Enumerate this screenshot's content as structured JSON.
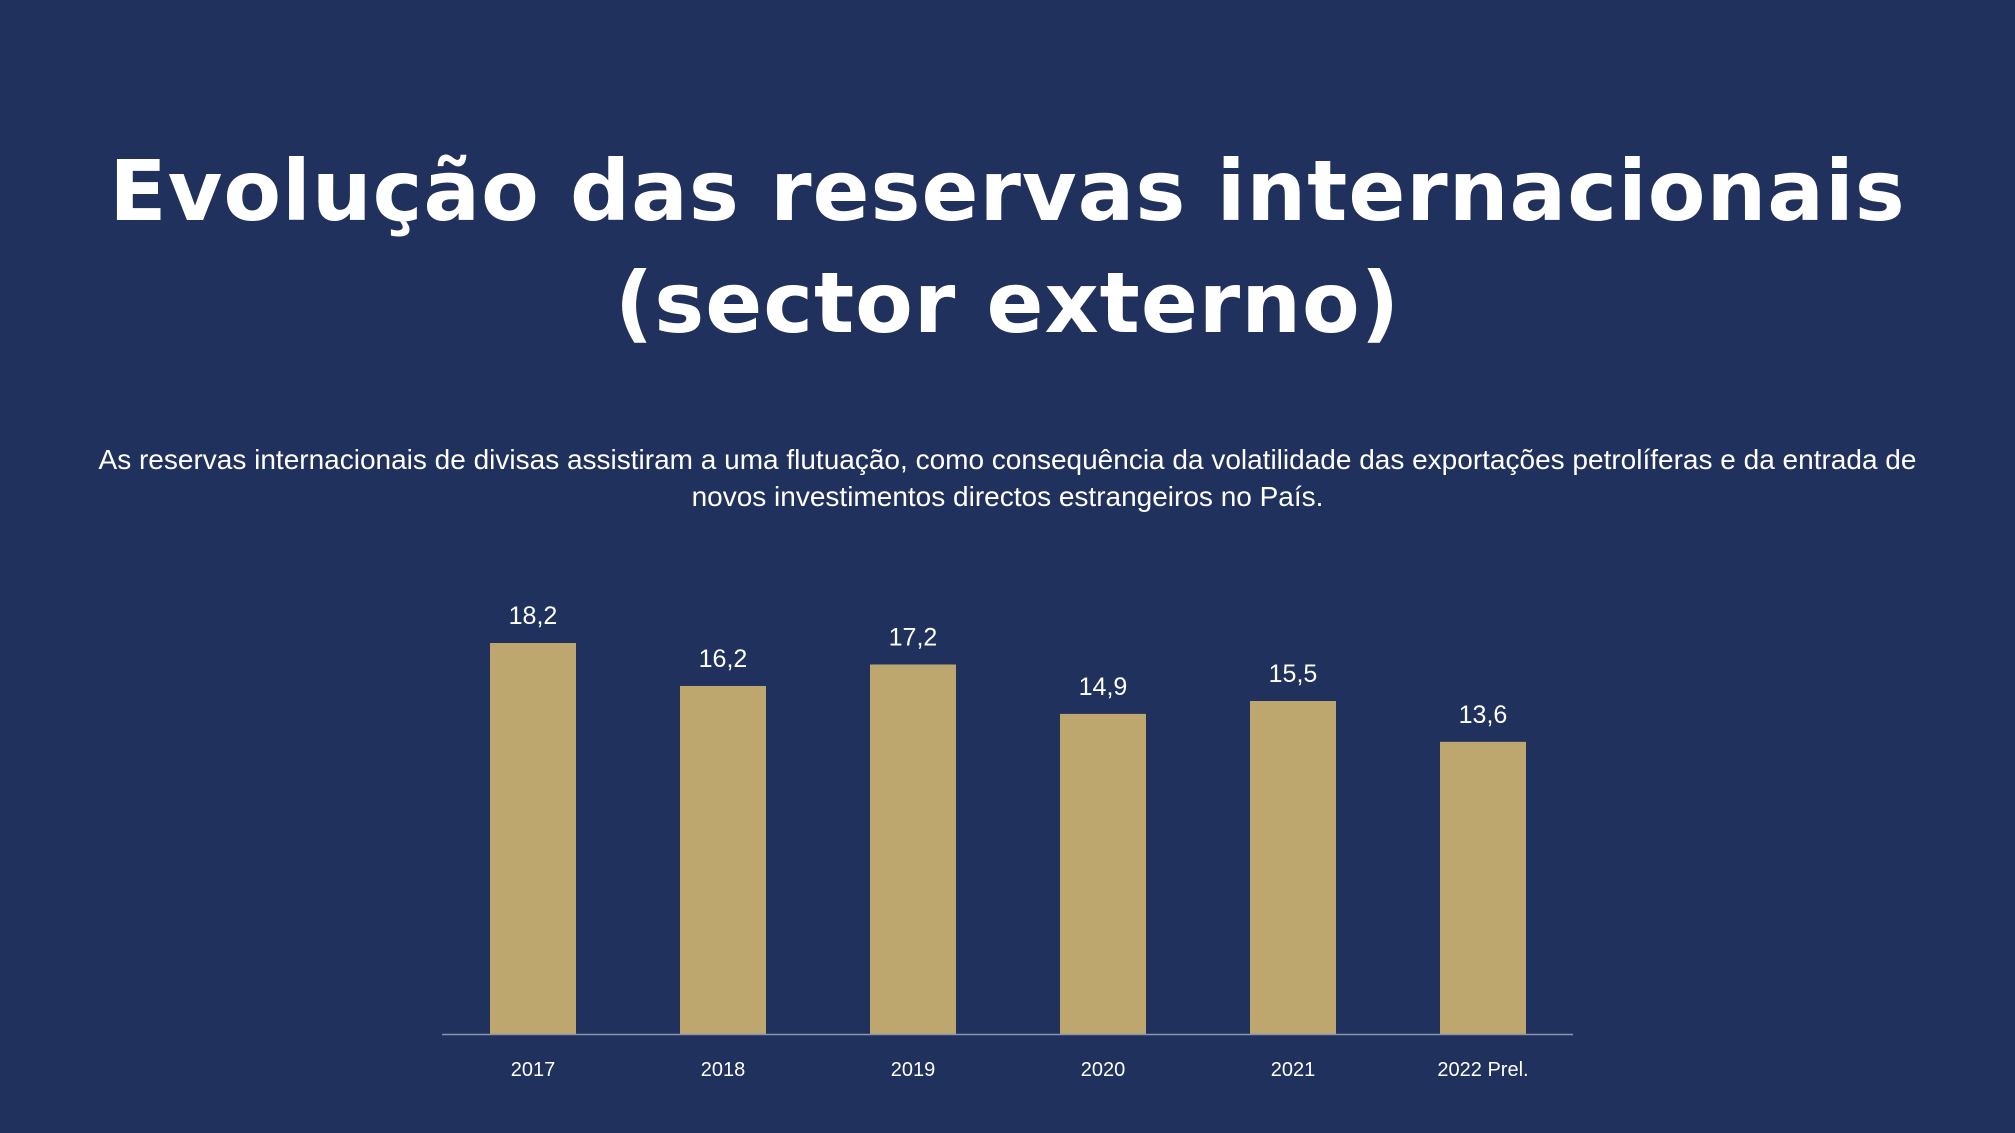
{
  "title": "Evolução das reservas internacionais\n(sector externo)",
  "subtitle": "As reservas internacionais de divisas assistiram a uma flutuação, como consequência da volatilidade das exportações petrolíferas e da entrada de novos investimentos directos estrangeiros no País.",
  "colors": {
    "background": "#1f315c",
    "bar": "#bda76f",
    "text": "#ffffff",
    "axis": "#8c94ad"
  },
  "chart_data": {
    "type": "bar",
    "title": "Evolução das reservas internacionais (sector externo)",
    "categories": [
      "2017",
      "2018",
      "2019",
      "2020",
      "2021",
      "2022 Prel."
    ],
    "values": [
      18.2,
      16.2,
      17.2,
      14.9,
      15.5,
      13.6
    ],
    "value_labels": [
      "18,2",
      "16,2",
      "17,2",
      "14,9",
      "15,5",
      "13,6"
    ],
    "xlabel": "",
    "ylabel": "",
    "ylim": [
      0,
      18.2
    ],
    "grid": false,
    "legend": "none"
  }
}
